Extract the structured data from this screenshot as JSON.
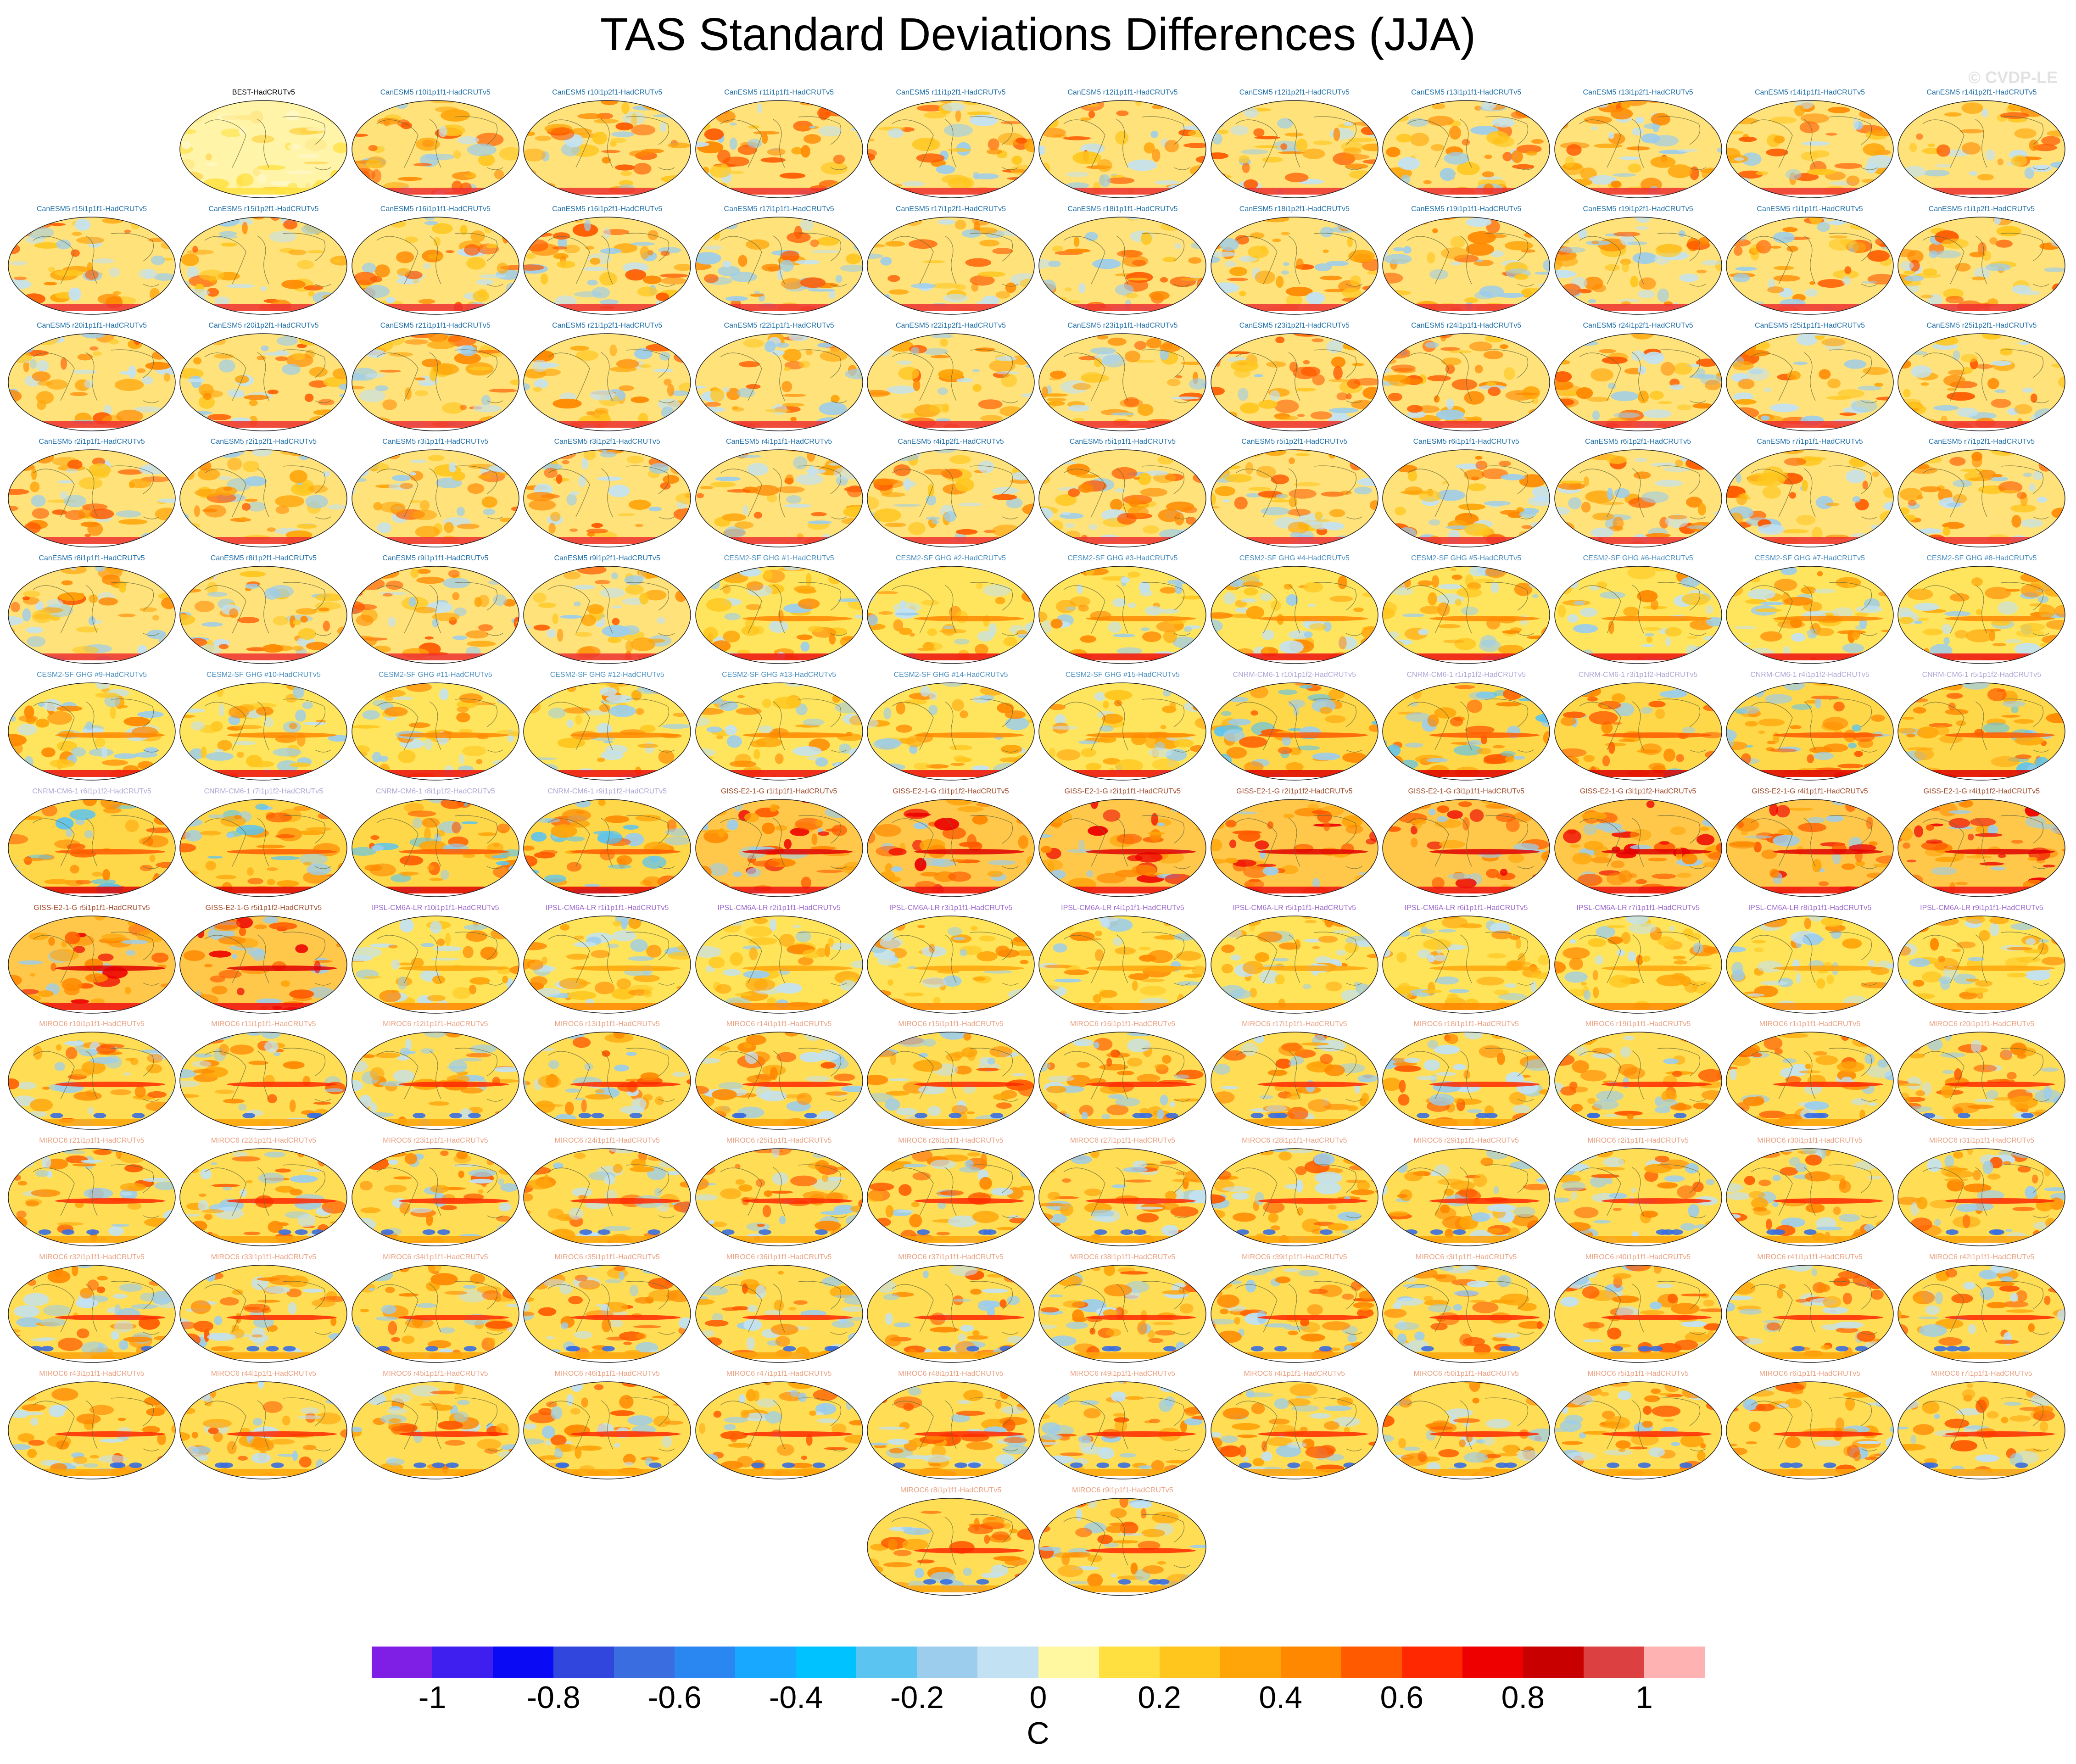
{
  "header": {
    "title": "TAS Standard Deviations Differences (JJA)",
    "credit": "© CVDP-LE"
  },
  "chart_data": {
    "type": "heatmap",
    "title": "TAS Standard Deviations Differences (JJA)",
    "panel_type": "global map (elliptical projection) of standard deviation differences",
    "panels": [
      "BEST-HadCRUTv5",
      "CanESM5 r10i1p1f1-HadCRUTv5",
      "CanESM5 r10i1p2f1-HadCRUTv5",
      "CanESM5 r11i1p1f1-HadCRUTv5",
      "CanESM5 r11i1p2f1-HadCRUTv5",
      "CanESM5 r12i1p1f1-HadCRUTv5",
      "CanESM5 r12i1p2f1-HadCRUTv5",
      "CanESM5 r13i1p1f1-HadCRUTv5",
      "CanESM5 r13i1p2f1-HadCRUTv5",
      "CanESM5 r14i1p1f1-HadCRUTv5",
      "CanESM5 r14i1p2f1-HadCRUTv5",
      "CanESM5 r15i1p1f1-HadCRUTv5",
      "CanESM5 r15i1p2f1-HadCRUTv5",
      "CanESM5 r16i1p1f1-HadCRUTv5",
      "CanESM5 r16i1p2f1-HadCRUTv5",
      "CanESM5 r17i1p1f1-HadCRUTv5",
      "CanESM5 r17i1p2f1-HadCRUTv5",
      "CanESM5 r18i1p1f1-HadCRUTv5",
      "CanESM5 r18i1p2f1-HadCRUTv5",
      "CanESM5 r19i1p1f1-HadCRUTv5",
      "CanESM5 r19i1p2f1-HadCRUTv5",
      "CanESM5 r1i1p1f1-HadCRUTv5",
      "CanESM5 r1i1p2f1-HadCRUTv5",
      "CanESM5 r20i1p1f1-HadCRUTv5",
      "CanESM5 r20i1p2f1-HadCRUTv5",
      "CanESM5 r21i1p1f1-HadCRUTv5",
      "CanESM5 r21i1p2f1-HadCRUTv5",
      "CanESM5 r22i1p1f1-HadCRUTv5",
      "CanESM5 r22i1p2f1-HadCRUTv5",
      "CanESM5 r23i1p1f1-HadCRUTv5",
      "CanESM5 r23i1p2f1-HadCRUTv5",
      "CanESM5 r24i1p1f1-HadCRUTv5",
      "CanESM5 r24i1p2f1-HadCRUTv5",
      "CanESM5 r25i1p1f1-HadCRUTv5",
      "CanESM5 r25i1p2f1-HadCRUTv5",
      "CanESM5 r2i1p1f1-HadCRUTv5",
      "CanESM5 r2i1p2f1-HadCRUTv5",
      "CanESM5 r3i1p1f1-HadCRUTv5",
      "CanESM5 r3i1p2f1-HadCRUTv5",
      "CanESM5 r4i1p1f1-HadCRUTv5",
      "CanESM5 r4i1p2f1-HadCRUTv5",
      "CanESM5 r5i1p1f1-HadCRUTv5",
      "CanESM5 r5i1p2f1-HadCRUTv5",
      "CanESM5 r6i1p1f1-HadCRUTv5",
      "CanESM5 r6i1p2f1-HadCRUTv5",
      "CanESM5 r7i1p1f1-HadCRUTv5",
      "CanESM5 r7i1p2f1-HadCRUTv5",
      "CanESM5 r8i1p1f1-HadCRUTv5",
      "CanESM5 r8i1p2f1-HadCRUTv5",
      "CanESM5 r9i1p1f1-HadCRUTv5",
      "CanESM5 r9i1p2f1-HadCRUTv5",
      "CESM2-SF GHG #1-HadCRUTv5",
      "CESM2-SF GHG #2-HadCRUTv5",
      "CESM2-SF GHG #3-HadCRUTv5",
      "CESM2-SF GHG #4-HadCRUTv5",
      "CESM2-SF GHG #5-HadCRUTv5",
      "CESM2-SF GHG #6-HadCRUTv5",
      "CESM2-SF GHG #7-HadCRUTv5",
      "CESM2-SF GHG #8-HadCRUTv5",
      "CESM2-SF GHG #9-HadCRUTv5",
      "CESM2-SF GHG #10-HadCRUTv5",
      "CESM2-SF GHG #11-HadCRUTv5",
      "CESM2-SF GHG #12-HadCRUTv5",
      "CESM2-SF GHG #13-HadCRUTv5",
      "CESM2-SF GHG #14-HadCRUTv5",
      "CESM2-SF GHG #15-HadCRUTv5",
      "CNRM-CM6-1 r10i1p1f2-HadCRUTv5",
      "CNRM-CM6-1 r1i1p1f2-HadCRUTv5",
      "CNRM-CM6-1 r3i1p1f2-HadCRUTv5",
      "CNRM-CM6-1 r4i1p1f2-HadCRUTv5",
      "CNRM-CM6-1 r5i1p1f2-HadCRUTv5",
      "CNRM-CM6-1 r6i1p1f2-HadCRUTv5",
      "CNRM-CM6-1 r7i1p1f2-HadCRUTv5",
      "CNRM-CM6-1 r8i1p1f2-HadCRUTv5",
      "CNRM-CM6-1 r9i1p1f2-HadCRUTv5",
      "GISS-E2-1-G r1i1p1f1-HadCRUTv5",
      "GISS-E2-1-G r1i1p1f2-HadCRUTv5",
      "GISS-E2-1-G r2i1p1f1-HadCRUTv5",
      "GISS-E2-1-G r2i1p1f2-HadCRUTv5",
      "GISS-E2-1-G r3i1p1f1-HadCRUTv5",
      "GISS-E2-1-G r3i1p1f2-HadCRUTv5",
      "GISS-E2-1-G r4i1p1f1-HadCRUTv5",
      "GISS-E2-1-G r4i1p1f2-HadCRUTv5",
      "GISS-E2-1-G r5i1p1f1-HadCRUTv5",
      "GISS-E2-1-G r5i1p1f2-HadCRUTv5",
      "IPSL-CM6A-LR r10i1p1f1-HadCRUTv5",
      "IPSL-CM6A-LR r1i1p1f1-HadCRUTv5",
      "IPSL-CM6A-LR r2i1p1f1-HadCRUTv5",
      "IPSL-CM6A-LR r3i1p1f1-HadCRUTv5",
      "IPSL-CM6A-LR r4i1p1f1-HadCRUTv5",
      "IPSL-CM6A-LR r5i1p1f1-HadCRUTv5",
      "IPSL-CM6A-LR r6i1p1f1-HadCRUTv5",
      "IPSL-CM6A-LR r7i1p1f1-HadCRUTv5",
      "IPSL-CM6A-LR r8i1p1f1-HadCRUTv5",
      "IPSL-CM6A-LR r9i1p1f1-HadCRUTv5",
      "MIROC6 r10i1p1f1-HadCRUTv5",
      "MIROC6 r11i1p1f1-HadCRUTv5",
      "MIROC6 r12i1p1f1-HadCRUTv5",
      "MIROC6 r13i1p1f1-HadCRUTv5",
      "MIROC6 r14i1p1f1-HadCRUTv5",
      "MIROC6 r15i1p1f1-HadCRUTv5",
      "MIROC6 r16i1p1f1-HadCRUTv5",
      "MIROC6 r17i1p1f1-HadCRUTv5",
      "MIROC6 r18i1p1f1-HadCRUTv5",
      "MIROC6 r19i1p1f1-HadCRUTv5",
      "MIROC6 r1i1p1f1-HadCRUTv5",
      "MIROC6 r20i1p1f1-HadCRUTv5",
      "MIROC6 r21i1p1f1-HadCRUTv5",
      "MIROC6 r22i1p1f1-HadCRUTv5",
      "MIROC6 r23i1p1f1-HadCRUTv5",
      "MIROC6 r24i1p1f1-HadCRUTv5",
      "MIROC6 r25i1p1f1-HadCRUTv5",
      "MIROC6 r26i1p1f1-HadCRUTv5",
      "MIROC6 r27i1p1f1-HadCRUTv5",
      "MIROC6 r28i1p1f1-HadCRUTv5",
      "MIROC6 r29i1p1f1-HadCRUTv5",
      "MIROC6 r2i1p1f1-HadCRUTv5",
      "MIROC6 r30i1p1f1-HadCRUTv5",
      "MIROC6 r31i1p1f1-HadCRUTv5",
      "MIROC6 r32i1p1f1-HadCRUTv5",
      "MIROC6 r33i1p1f1-HadCRUTv5",
      "MIROC6 r34i1p1f1-HadCRUTv5",
      "MIROC6 r35i1p1f1-HadCRUTv5",
      "MIROC6 r36i1p1f1-HadCRUTv5",
      "MIROC6 r37i1p1f1-HadCRUTv5",
      "MIROC6 r38i1p1f1-HadCRUTv5",
      "MIROC6 r39i1p1f1-HadCRUTv5",
      "MIROC6 r3i1p1f1-HadCRUTv5",
      "MIROC6 r40i1p1f1-HadCRUTv5",
      "MIROC6 r41i1p1f1-HadCRUTv5",
      "MIROC6 r42i1p1f1-HadCRUTv5",
      "MIROC6 r43i1p1f1-HadCRUTv5",
      "MIROC6 r44i1p1f1-HadCRUTv5",
      "MIROC6 r45i1p1f1-HadCRUTv5",
      "MIROC6 r46i1p1f1-HadCRUTv5",
      "MIROC6 r47i1p1f1-HadCRUTv5",
      "MIROC6 r48i1p1f1-HadCRUTv5",
      "MIROC6 r49i1p1f1-HadCRUTv5",
      "MIROC6 r4i1p1f1-HadCRUTv5",
      "MIROC6 r50i1p1f1-HadCRUTv5",
      "MIROC6 r5i1p1f1-HadCRUTv5",
      "MIROC6 r6i1p1f1-HadCRUTv5",
      "MIROC6 r7i1p1f1-HadCRUTv5",
      "MIROC6 r8i1p1f1-HadCRUTv5",
      "MIROC6 r9i1p1f1-HadCRUTv5"
    ],
    "label_colors": {
      "BEST": "#000000",
      "CanESM5": "#1f6fa8",
      "CESM2-SF": "#4a8fc0",
      "CNRM-CM6-1": "#b0a6d6",
      "GISS-E2-1-G": "#a04a2a",
      "IPSL-CM6A-LR": "#9a66cc",
      "MIROC6": "#eaa080"
    },
    "colorbar": {
      "label": "C",
      "ticks": [
        "-1",
        "-0.8",
        "-0.6",
        "-0.4",
        "-0.2",
        "0",
        "0.2",
        "0.4",
        "0.6",
        "0.8",
        "1"
      ],
      "levels": [
        -1.1,
        -1,
        -0.9,
        -0.8,
        -0.7,
        -0.6,
        -0.5,
        -0.4,
        -0.3,
        -0.2,
        -0.1,
        0,
        0.1,
        0.2,
        0.3,
        0.4,
        0.5,
        0.6,
        0.7,
        0.8,
        0.9,
        1,
        1.1
      ],
      "colors": [
        "#7f1fe6",
        "#3f1ff0",
        "#0a0af5",
        "#3046dd",
        "#3a6ee0",
        "#2a86f0",
        "#18a8ff",
        "#00c2ff",
        "#5cc4f0",
        "#9ccdec",
        "#c2e2f4",
        "#fff8a0",
        "#ffe040",
        "#ffc61e",
        "#ffa50a",
        "#ff8800",
        "#ff5a00",
        "#ff2800",
        "#ee0000",
        "#c80000",
        "#dc4040",
        "#ffb2b2"
      ]
    },
    "map_pattern_by_model": {
      "BEST": "mostly light yellow, small orange patches",
      "CanESM5": "mixed yellow/orange with blue Pacific patches, red Southern Ocean band",
      "CESM2-SF": "orange equatorial band, red Southern Ocean band",
      "CNRM-CM6-1": "orange-red with blue patches, red Southern Ocean band",
      "GISS-E2-1-G": "strong red equatorial Pacific band, red high latitudes",
      "IPSL-CM6A-LR": "yellow-orange with light blue patches",
      "MIROC6": "yellow-orange, red equatorial Pacific, blue Southern Ocean spots"
    }
  }
}
